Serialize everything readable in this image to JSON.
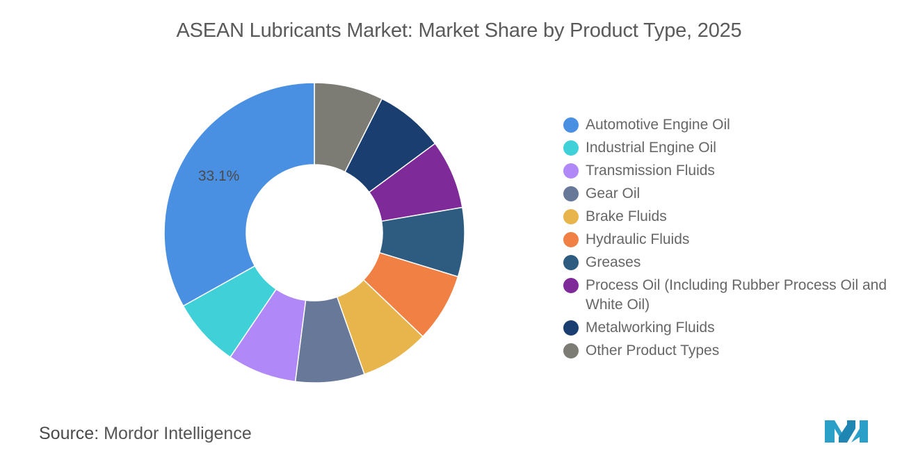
{
  "title": "ASEAN Lubricants Market: Market Share by Product Type, 2025",
  "source": {
    "label": "Source:",
    "value": "Mordor Intelligence"
  },
  "logo": {
    "name": "mordor-intelligence-logo",
    "colors": [
      "#2aa0c8",
      "#1a6f9a"
    ]
  },
  "chart_data": {
    "type": "pie",
    "style": "donut",
    "title": "ASEAN Lubricants Market: Market Share by Product Type, 2025",
    "legend_position": "right",
    "categories": [
      "Automotive Engine Oil",
      "Industrial Engine Oil",
      "Transmission Fluids",
      "Gear Oil",
      "Brake Fluids",
      "Hydraulic Fluids",
      "Greases",
      "Process Oil (Including Rubber Process Oil and White Oil)",
      "Metalworking Fluids",
      "Other Product Types"
    ],
    "values": [
      33.1,
      7.43,
      7.43,
      7.43,
      7.43,
      7.43,
      7.43,
      7.43,
      7.43,
      7.43
    ],
    "colors": [
      "#4a90e2",
      "#40d0d8",
      "#b088f8",
      "#687898",
      "#e8b44c",
      "#f08044",
      "#2e5c80",
      "#7e2a98",
      "#1a3e70",
      "#7c7c74"
    ],
    "data_labels": [
      "33.1%",
      "",
      "",
      "",
      "",
      "",
      "",
      "",
      "",
      ""
    ]
  }
}
